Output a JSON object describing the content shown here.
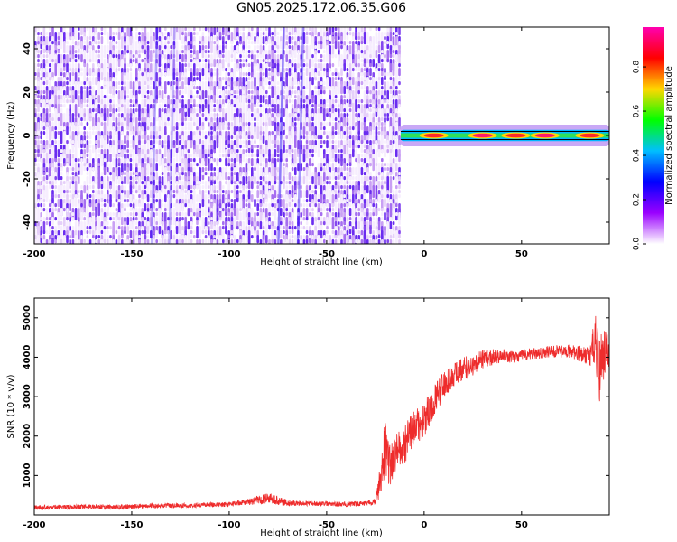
{
  "title": "GN05.2025.172.06.35.G06",
  "colors": {
    "snr_line": "#ee2c2c",
    "axis": "#000000",
    "spectrum_noise": [
      "#f6edfe",
      "#e5cff9",
      "#c9a0f4",
      "#a66ef0",
      "#8447ee",
      "#6a2cf0"
    ],
    "colorbar_stops": [
      "#ffffff",
      "#9a00ff",
      "#0000ff",
      "#00bfff",
      "#00ff00",
      "#ffd700",
      "#ff0000",
      "#ff00b0"
    ]
  },
  "chart_data": [
    {
      "id": "spectrogram",
      "type": "heatmap",
      "title": "GN05.2025.172.06.35.G06",
      "xlabel": "Height of straight line (km)",
      "ylabel": "Frequency (Hz)",
      "xlim": [
        -200,
        95
      ],
      "ylim": [
        -50,
        50
      ],
      "xticks": [
        -200,
        -150,
        -100,
        -50,
        0,
        50
      ],
      "yticks": [
        -40,
        -20,
        0,
        20,
        40
      ],
      "regions": [
        {
          "kind": "broadband noise",
          "x_range": [
            -200,
            -12
          ],
          "y_range": [
            -50,
            50
          ],
          "amplitude_range": [
            0.05,
            0.2
          ]
        },
        {
          "kind": "signal band",
          "x_range": [
            -12,
            95
          ],
          "y_center": 0,
          "y_halfwidth": 2,
          "amplitude_range": [
            0.3,
            0.95
          ]
        }
      ],
      "signal_peaks": [
        {
          "x": 5,
          "amplitude": 0.9
        },
        {
          "x": 30,
          "amplitude": 0.95
        },
        {
          "x": 47,
          "amplitude": 0.85
        },
        {
          "x": 62,
          "amplitude": 0.95
        },
        {
          "x": 85,
          "amplitude": 0.9
        }
      ],
      "colorbar": {
        "label": "Normalized spectral amplitude",
        "range": [
          0.0,
          0.98
        ],
        "ticks": [
          0.0,
          0.2,
          0.4,
          0.6,
          0.8
        ]
      },
      "grid": false
    },
    {
      "id": "snr",
      "type": "line",
      "xlabel": "Height of straight line (km)",
      "ylabel": "SNR (10 * v/v)",
      "xlim": [
        -200,
        95
      ],
      "ylim": [
        0,
        5500
      ],
      "xticks": [
        -200,
        -150,
        -100,
        -50,
        0,
        50
      ],
      "yticks": [
        1000,
        2000,
        3000,
        4000,
        5000
      ],
      "grid": false,
      "series": [
        {
          "x": [
            -200,
            -180,
            -160,
            -140,
            -120,
            -100,
            -90,
            -85,
            -80,
            -75,
            -70,
            -60,
            -50,
            -40,
            -30,
            -25,
            -22,
            -20,
            -18,
            -15,
            -10,
            -5,
            0,
            5,
            10,
            15,
            20,
            25,
            30,
            35,
            40,
            45,
            50,
            55,
            60,
            65,
            70,
            75,
            80,
            85,
            88,
            90,
            93,
            95
          ],
          "y": [
            190,
            200,
            200,
            230,
            240,
            270,
            330,
            380,
            420,
            360,
            300,
            290,
            280,
            270,
            290,
            340,
            1000,
            1700,
            1300,
            1500,
            1800,
            2200,
            2400,
            2900,
            3300,
            3550,
            3700,
            3800,
            3950,
            4000,
            4050,
            4000,
            4050,
            4100,
            4100,
            4150,
            4150,
            4150,
            4100,
            4000,
            4500,
            3700,
            4200,
            4100
          ],
          "noise": [
            60,
            60,
            60,
            60,
            60,
            60,
            80,
            120,
            150,
            120,
            70,
            60,
            60,
            60,
            60,
            80,
            500,
            900,
            600,
            500,
            500,
            450,
            450,
            400,
            350,
            300,
            300,
            280,
            250,
            200,
            180,
            150,
            150,
            140,
            140,
            150,
            160,
            170,
            200,
            250,
            700,
            900,
            600,
            350
          ]
        }
      ]
    }
  ]
}
